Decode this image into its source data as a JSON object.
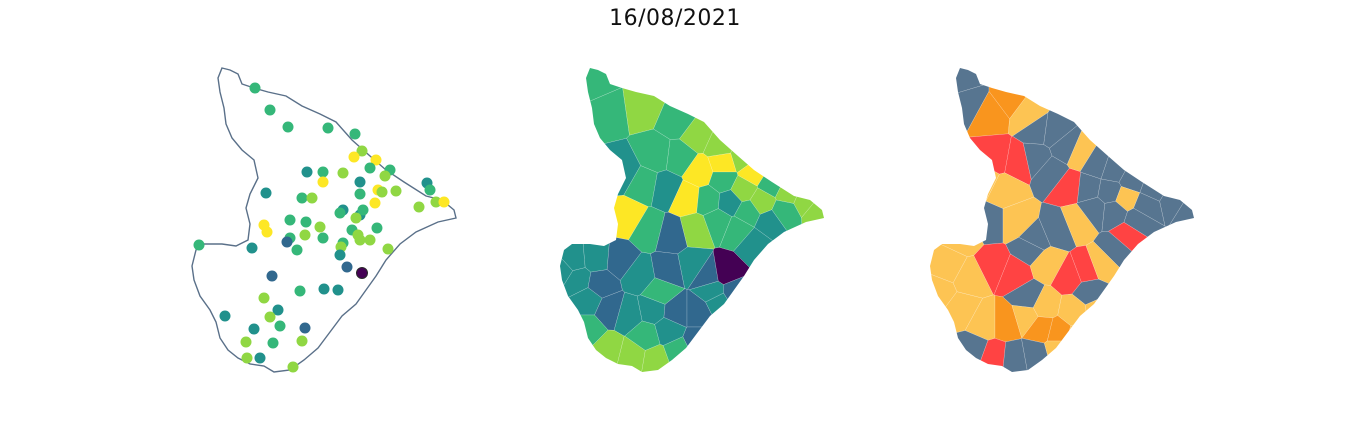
{
  "title": "16/08/2021",
  "colors": {
    "outline": "#5a7089",
    "viridis": [
      "#440154",
      "#31688e",
      "#21918c",
      "#35b779",
      "#90d743",
      "#fde725"
    ],
    "classes": [
      "#fdc453",
      "#f9951e",
      "#ff4343",
      "#577590"
    ]
  },
  "maps": [
    {
      "name": "station-points-map"
    },
    {
      "name": "municipality-choropleth-map"
    },
    {
      "name": "municipality-classification-map"
    }
  ]
}
